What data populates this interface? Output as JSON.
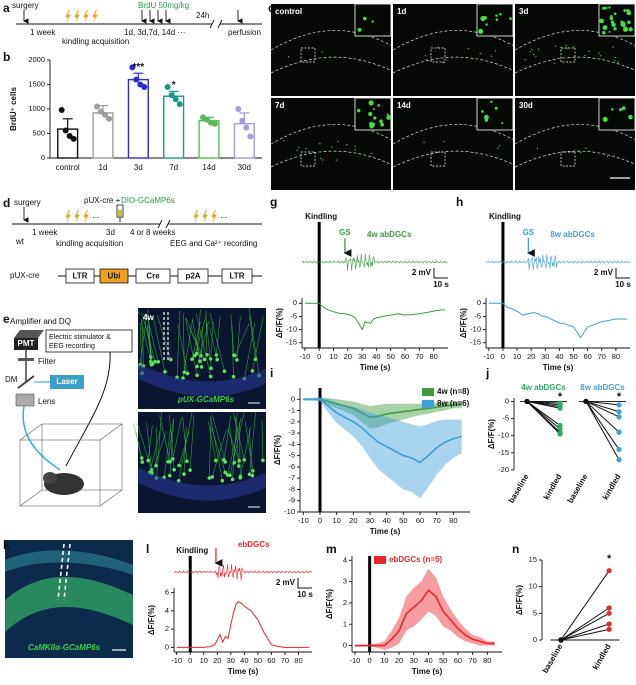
{
  "panel_labels": [
    "a",
    "b",
    "c",
    "d",
    "e",
    "f",
    "g",
    "h",
    "i",
    "j",
    "k",
    "l",
    "m",
    "n"
  ],
  "diagrams": {
    "a": {
      "surgery": "surgery",
      "interval": "1 week",
      "kindling": "kindling acquisition",
      "brdu": "BrdU 50mg/kg",
      "days": "1d, 3d,7d, 14d ···",
      "wait": "24h",
      "end": "perfusion"
    },
    "c": {
      "labels": [
        "control",
        "1d",
        "3d",
        "7d",
        "14d",
        "30d"
      ]
    },
    "d": {
      "surgery": "surgery",
      "vector": "pUX-cre +",
      "virus": "DIO-GCaMP6s",
      "interval": "1 week",
      "gap": "3d",
      "wait": "4 or 8 weeks",
      "strain": "wt",
      "kindling": "kindling acquisition",
      "recording": "EEG and Ca²⁺ recording",
      "construct_name": "pUX-cre",
      "construct": [
        "LTR",
        "Ubi",
        "Cre",
        "p2A",
        "LTR"
      ]
    },
    "e": {
      "amplifier": "Amplifier and DQ",
      "pmt": "PMT",
      "filter": "Filter",
      "stimulator": [
        "Electric stimulator &",
        "EEG recording"
      ],
      "dm": "DM",
      "laser": "Laser",
      "lens": "Lens"
    },
    "f": {
      "age": "4w",
      "label": "pUX-GCaMP6s"
    },
    "k": {
      "label": "CaMKIIα-GCaMP6s"
    }
  },
  "chart_data": [
    {
      "type": "bar",
      "ylabel": "BrdU⁺ cells",
      "categories": [
        "control",
        "1d",
        "3d",
        "7d",
        "14d",
        "30d"
      ],
      "values": [
        590,
        920,
        1600,
        1260,
        760,
        700
      ],
      "errors": [
        210,
        150,
        130,
        100,
        70,
        220
      ],
      "points": [
        [
          980,
          560,
          450,
          390
        ],
        [
          1050,
          950,
          880,
          800
        ],
        [
          1850,
          1600,
          1500,
          1450
        ],
        [
          1450,
          1280,
          1200,
          1100
        ],
        [
          830,
          780,
          720,
          700
        ],
        [
          1000,
          760,
          620,
          440
        ]
      ],
      "significance": [
        null,
        null,
        "***",
        "*",
        null,
        null
      ],
      "colors": [
        "#111111",
        "#9e9e9e",
        "#2b2bc8",
        "#1a9a86",
        "#5cb85c",
        "#a39ddb"
      ],
      "ylim": [
        0,
        2000
      ],
      "yticks": [
        0,
        500,
        1000,
        1500,
        2000
      ]
    },
    {
      "type": "line",
      "title": "4w abDGCs",
      "stimulus": "Kindling",
      "stimulus_x": 0,
      "event": "GS",
      "event_x": 18,
      "scale_labels": [
        "2 mV",
        "10 s"
      ],
      "xlabel": "Time (s)",
      "ylabel": "ΔF/F(%)",
      "x": [
        -10,
        -5,
        0,
        3,
        6,
        10,
        14,
        18,
        22,
        25,
        28,
        30,
        32,
        34,
        36,
        38,
        40,
        45,
        50,
        55,
        60,
        65,
        70,
        75,
        80,
        85,
        88
      ],
      "series": [
        {
          "color": "#3e9a3e",
          "values": [
            0,
            0,
            0,
            -1.5,
            -2.5,
            -3.2,
            -3.8,
            -4,
            -4.5,
            -5.5,
            -8,
            -10,
            -7,
            -7.5,
            -7.5,
            -6,
            -5.5,
            -5,
            -4.5,
            -4,
            -4.5,
            -4.3,
            -4,
            -3.5,
            -3,
            -2.5,
            -2.5
          ]
        }
      ],
      "xlim": [
        -12,
        90
      ],
      "xticks": [
        -10,
        0,
        10,
        20,
        30,
        40,
        50,
        60,
        70,
        80
      ],
      "ylim": [
        -17,
        2
      ],
      "yticks": [
        0,
        -5,
        -10,
        -15
      ]
    },
    {
      "type": "line",
      "title": "8w abDGCs",
      "stimulus": "Kindling",
      "stimulus_x": 0,
      "event": "GS",
      "event_x": 18,
      "scale_labels": [
        "2 mV",
        "10 s"
      ],
      "xlabel": "Time (s)",
      "ylabel": "ΔF/F(%)",
      "x": [
        -10,
        -5,
        0,
        3,
        6,
        10,
        14,
        18,
        22,
        25,
        28,
        30,
        32,
        34,
        36,
        38,
        40,
        45,
        50,
        55,
        60,
        65,
        70,
        75,
        80,
        85,
        88
      ],
      "series": [
        {
          "color": "#3f9fd6",
          "values": [
            0,
            0,
            0,
            -1.5,
            -2,
            -3,
            -4.5,
            -4,
            -3.5,
            -4,
            -5,
            -5,
            -5.5,
            -6,
            -6.5,
            -7,
            -7.5,
            -8,
            -9,
            -13,
            -9,
            -8,
            -7,
            -6.5,
            -6,
            -6,
            -6
          ]
        }
      ],
      "xlim": [
        -12,
        90
      ],
      "xticks": [
        -10,
        0,
        10,
        20,
        30,
        40,
        50,
        60,
        70,
        80
      ],
      "ylim": [
        -17,
        2
      ],
      "yticks": [
        0,
        -5,
        -10,
        -15
      ]
    },
    {
      "type": "line",
      "stimulus_x": 0,
      "xlabel": "Time (s)",
      "ylabel": "ΔF/F(%)",
      "legend": "top-right",
      "x": [
        -10,
        -5,
        0,
        5,
        10,
        15,
        20,
        25,
        30,
        35,
        40,
        45,
        50,
        55,
        60,
        65,
        70,
        75,
        80,
        85
      ],
      "series": [
        {
          "name": "4w (n=8)",
          "color": "#3e9a3e",
          "values": [
            0,
            0,
            0,
            -0.2,
            -0.4,
            -0.6,
            -0.8,
            -1.2,
            -1.6,
            -1.5,
            -1.3,
            -1.2,
            -1.1,
            -1,
            -0.9,
            -0.8,
            -0.7,
            -0.6,
            -0.5,
            -0.5
          ],
          "errors": [
            0.1,
            0.1,
            0.1,
            0.3,
            0.4,
            0.5,
            0.6,
            0.8,
            1,
            1,
            0.9,
            0.8,
            0.7,
            0.6,
            0.5,
            0.5,
            0.4,
            0.4,
            0.3,
            0.3
          ]
        },
        {
          "name": "8w (n=6)",
          "color": "#3f9fd6",
          "values": [
            0,
            0,
            0,
            -0.6,
            -1.2,
            -1.6,
            -2,
            -2.5,
            -3.2,
            -3.8,
            -4.2,
            -4.6,
            -5,
            -5.2,
            -5.6,
            -5,
            -4.3,
            -3.8,
            -3.5,
            -3.3
          ],
          "errors": [
            0.1,
            0.1,
            0.2,
            0.6,
            0.9,
            1.1,
            1.3,
            1.6,
            2,
            2.4,
            2.6,
            2.8,
            3,
            3,
            3.2,
            2.8,
            2.4,
            2,
            1.7,
            1.5
          ]
        }
      ],
      "xlim": [
        -12,
        90
      ],
      "xticks": [
        -10,
        0,
        10,
        20,
        30,
        40,
        50,
        60,
        70,
        80
      ],
      "ylim": [
        -10,
        1
      ],
      "yticks": [
        0,
        -1,
        -2,
        -3,
        -4,
        -5,
        -6,
        -7,
        -8,
        -9,
        -10
      ]
    },
    {
      "type": "paired",
      "ylabel": "ΔF/F(%)",
      "categories": [
        "baseline",
        "kindled"
      ],
      "groups": [
        {
          "name": "4w abDGCs",
          "color": "#2eaa66",
          "significance": "*",
          "baseline": [
            0,
            0,
            0,
            0,
            0,
            0,
            0,
            0
          ],
          "kindled": [
            -0.5,
            -1,
            -1.5,
            -2,
            -7,
            -8,
            -9,
            -9.5
          ]
        },
        {
          "name": "8w abDGCs",
          "color": "#3f9fd6",
          "significance": "*",
          "baseline": [
            0,
            0,
            0,
            0,
            0,
            0
          ],
          "kindled": [
            -1,
            -3,
            -4.5,
            -9,
            -14,
            -17
          ]
        }
      ],
      "ylim": [
        -20,
        1
      ],
      "yticks": [
        0,
        -5,
        -10,
        -15,
        -20
      ]
    },
    {
      "type": "line",
      "title": "ebDGCs",
      "stimulus": "Kindling",
      "stimulus_x": 0,
      "event": "",
      "event_x": 19,
      "scale_labels": [
        "2 mV",
        "10 s"
      ],
      "xlabel": "Time (s)",
      "ylabel": "ΔF/F(%)",
      "x": [
        -10,
        -5,
        0,
        5,
        10,
        15,
        18,
        20,
        22,
        24,
        26,
        28,
        30,
        32,
        34,
        36,
        38,
        40,
        45,
        50,
        55,
        60,
        65,
        70,
        75,
        80,
        85,
        88
      ],
      "series": [
        {
          "color": "#e8262c",
          "values": [
            0,
            0,
            0,
            0,
            0,
            0.1,
            0.3,
            0.8,
            1.4,
            0.6,
            1.2,
            1,
            2.5,
            3.8,
            4.8,
            5,
            4.8,
            4.5,
            4,
            3,
            1.5,
            0.3,
            0.1,
            0,
            0,
            0,
            0,
            0
          ]
        }
      ],
      "xlim": [
        -12,
        90
      ],
      "xticks": [
        -10,
        0,
        10,
        20,
        30,
        40,
        50,
        60,
        70,
        80
      ],
      "ylim": [
        -0.5,
        6.5
      ],
      "yticks": [
        0,
        2,
        4,
        6
      ]
    },
    {
      "type": "line",
      "stimulus_x": 0,
      "xlabel": "Time (s)",
      "ylabel": "ΔF/F(%)",
      "legend": "top",
      "x": [
        -10,
        -5,
        0,
        5,
        10,
        15,
        20,
        25,
        30,
        35,
        40,
        45,
        50,
        55,
        60,
        65,
        70,
        75,
        80,
        85
      ],
      "series": [
        {
          "name": "ebDGCs (n=5)",
          "color": "#e8262c",
          "values": [
            0,
            0,
            0,
            0,
            0,
            0.3,
            0.7,
            1.5,
            1.8,
            2.1,
            2.6,
            2.3,
            1.6,
            1.2,
            0.8,
            0.5,
            0.3,
            0.2,
            0.1,
            0.1
          ],
          "errors": [
            0.05,
            0.05,
            0.05,
            0.1,
            0.2,
            0.4,
            0.6,
            0.8,
            0.9,
            0.9,
            1,
            0.9,
            0.7,
            0.5,
            0.4,
            0.3,
            0.2,
            0.2,
            0.1,
            0.1
          ]
        }
      ],
      "xlim": [
        -12,
        90
      ],
      "xticks": [
        -10,
        0,
        10,
        20,
        30,
        40,
        50,
        60,
        70,
        80
      ],
      "ylim": [
        -0.3,
        4.2
      ],
      "yticks": [
        0,
        1,
        2,
        3,
        4
      ]
    },
    {
      "type": "paired",
      "ylabel": "ΔF/F(%)",
      "categories": [
        "baseline",
        "kindled"
      ],
      "groups": [
        {
          "color": "#e8262c",
          "significance": "*",
          "baseline": [
            0,
            0,
            0,
            0,
            0
          ],
          "kindled": [
            2,
            3,
            5,
            6,
            13
          ]
        }
      ],
      "ylim": [
        0,
        15
      ],
      "yticks": [
        0,
        5,
        10,
        15
      ]
    }
  ]
}
